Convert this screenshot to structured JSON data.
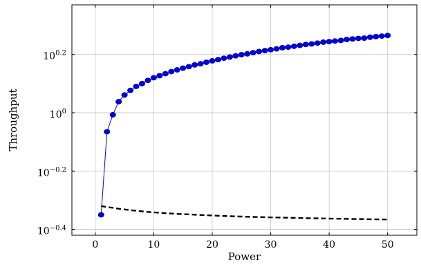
{
  "chart_data": {
    "type": "line",
    "title": "",
    "xlabel": "Power",
    "ylabel": "Throughput",
    "xlim": [
      -4,
      55
    ],
    "ylim_log10": [
      -0.42,
      0.37
    ],
    "yscale": "log",
    "grid": true,
    "x_ticks": [
      0,
      10,
      20,
      30,
      40,
      50
    ],
    "y_ticks": [
      {
        "exp": -0.4,
        "base": "10",
        "sup": "−0.4"
      },
      {
        "exp": -0.2,
        "base": "10",
        "sup": "−0.2"
      },
      {
        "exp": 0,
        "base": "10",
        "sup": "0"
      },
      {
        "exp": 0.2,
        "base": "10",
        "sup": "0.2"
      }
    ],
    "series": [
      {
        "style": "solid-marker",
        "color": "#0000dd",
        "x": [
          1,
          2,
          3,
          4,
          5,
          6,
          7,
          8,
          9,
          10,
          11,
          12,
          13,
          14,
          15,
          16,
          17,
          18,
          19,
          20,
          21,
          22,
          23,
          24,
          25,
          26,
          27,
          28,
          29,
          30,
          31,
          32,
          33,
          34,
          35,
          36,
          37,
          38,
          39,
          40,
          41,
          42,
          43,
          44,
          45,
          46,
          47,
          48,
          49,
          50
        ],
        "y": [
          0.4467,
          0.861,
          0.9841,
          1.0914,
          1.1508,
          1.1934,
          1.2312,
          1.2589,
          1.2911,
          1.3183,
          1.3397,
          1.3614,
          1.3836,
          1.4028,
          1.4223,
          1.4387,
          1.4588,
          1.4723,
          1.4894,
          1.5067,
          1.5205,
          1.5382,
          1.5524,
          1.5668,
          1.5812,
          1.5922,
          1.6069,
          1.6218,
          1.6331,
          1.6444,
          1.6558,
          1.6711,
          1.6788,
          1.6904,
          1.7022,
          1.714,
          1.7219,
          1.7338,
          1.7458,
          1.7539,
          1.762,
          1.7701,
          1.7824,
          1.7906,
          1.7989,
          1.803,
          1.8155,
          1.8239,
          1.8323,
          1.8408
        ]
      },
      {
        "style": "dashed",
        "color": "#000000",
        "x": [
          1,
          2,
          3,
          4,
          5,
          6,
          7,
          8,
          9,
          10,
          11,
          12,
          13,
          14,
          15,
          16,
          17,
          18,
          19,
          20,
          21,
          22,
          23,
          24,
          25,
          26,
          27,
          28,
          29,
          30,
          31,
          32,
          33,
          34,
          35,
          36,
          37,
          38,
          39,
          40,
          41,
          42,
          43,
          44,
          45,
          46,
          47,
          48,
          49,
          50
        ],
        "y": [
          0.4786,
          0.4752,
          0.4721,
          0.4688,
          0.466,
          0.4634,
          0.4613,
          0.4592,
          0.4571,
          0.4554,
          0.454,
          0.4527,
          0.4513,
          0.45,
          0.4491,
          0.4483,
          0.4473,
          0.4463,
          0.4453,
          0.4443,
          0.4435,
          0.4427,
          0.4419,
          0.4411,
          0.4406,
          0.44,
          0.4394,
          0.4389,
          0.4384,
          0.4378,
          0.4374,
          0.4369,
          0.4365,
          0.4361,
          0.4356,
          0.4352,
          0.4348,
          0.4344,
          0.434,
          0.4336,
          0.4333,
          0.433,
          0.4326,
          0.4323,
          0.432,
          0.4317,
          0.4314,
          0.4311,
          0.4308,
          0.4305
        ]
      }
    ]
  }
}
